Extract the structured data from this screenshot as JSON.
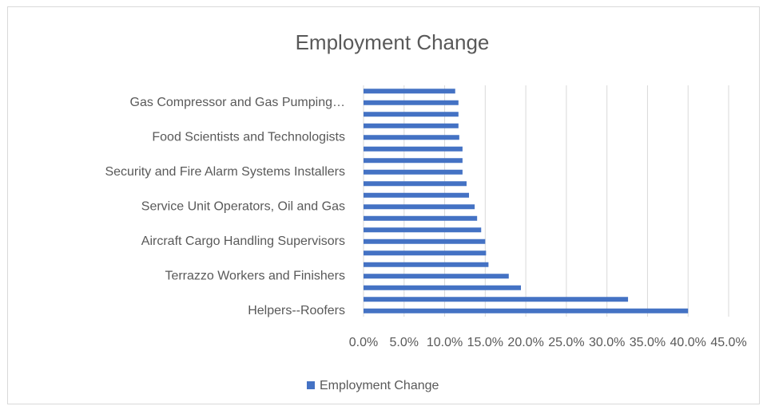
{
  "chart_data": {
    "type": "hbar",
    "title": "Employment Change",
    "categories": [
      "Helpers--Roofers",
      null,
      null,
      "Terrazzo Workers and Finishers",
      null,
      null,
      "Aircraft Cargo Handling Supervisors",
      null,
      null,
      "Service Unit Operators, Oil and Gas",
      null,
      null,
      "Security and Fire Alarm Systems Installers",
      null,
      null,
      "Food Scientists and Technologists",
      null,
      null,
      "Gas Compressor and Gas Pumping…",
      null
    ],
    "series": [
      {
        "name": "Employment Change",
        "color": "#4472c4",
        "values": [
          40.0,
          32.6,
          19.4,
          17.9,
          15.4,
          15.1,
          15.0,
          14.5,
          14.0,
          13.7,
          13.0,
          12.7,
          12.2,
          12.2,
          12.2,
          11.8,
          11.7,
          11.7,
          11.7,
          11.3
        ]
      }
    ],
    "xlim": [
      0,
      45
    ],
    "xticks": [
      {
        "value": 0,
        "label": "0.0%"
      },
      {
        "value": 5,
        "label": "5.0%"
      },
      {
        "value": 10,
        "label": "10.0%"
      },
      {
        "value": 15,
        "label": "15.0%"
      },
      {
        "value": 20,
        "label": "20.0%"
      },
      {
        "value": 25,
        "label": "25.0%"
      },
      {
        "value": 30,
        "label": "30.0%"
      },
      {
        "value": 35,
        "label": "35.0%"
      },
      {
        "value": 40,
        "label": "40.0%"
      },
      {
        "value": 45,
        "label": "45.0%"
      }
    ],
    "grid": true,
    "legend": "bottom"
  }
}
